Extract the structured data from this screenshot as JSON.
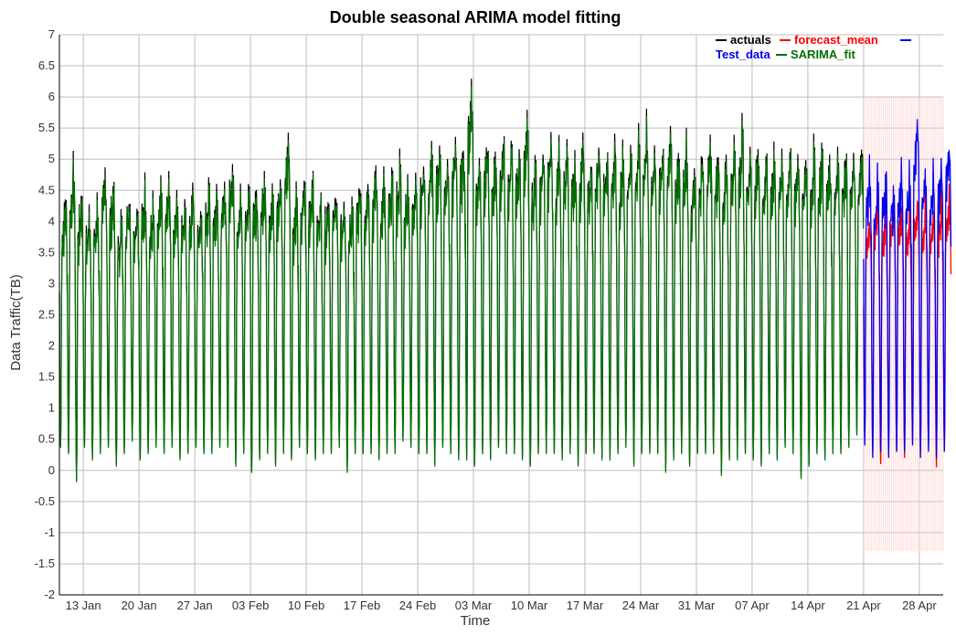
{
  "chart_data": {
    "type": "line",
    "title": "Double seasonal ARIMA model fitting",
    "xlabel": "Time",
    "ylabel": "Data Traffic(TB)",
    "ylim": [
      -2,
      7
    ],
    "xlim": [
      "2019-01-10",
      "2019-05-01"
    ],
    "grid": true,
    "legend_position": "top-right",
    "y_ticks": [
      -2,
      -1.5,
      -1,
      -0.5,
      0,
      0.5,
      1,
      1.5,
      2,
      2.5,
      3,
      3.5,
      4,
      4.5,
      5,
      5.5,
      6,
      6.5,
      7
    ],
    "x_ticks": [
      {
        "label": "13 Jan",
        "date": "2019-01-13"
      },
      {
        "label": "20 Jan",
        "date": "2019-01-20"
      },
      {
        "label": "27 Jan",
        "date": "2019-01-27"
      },
      {
        "label": "03 Feb",
        "date": "2019-02-03"
      },
      {
        "label": "10 Feb",
        "date": "2019-02-10"
      },
      {
        "label": "17 Feb",
        "date": "2019-02-17"
      },
      {
        "label": "24 Feb",
        "date": "2019-02-24"
      },
      {
        "label": "03 Mar",
        "date": "2019-03-03"
      },
      {
        "label": "10 Mar",
        "date": "2019-03-10"
      },
      {
        "label": "17 Mar",
        "date": "2019-03-17"
      },
      {
        "label": "24 Mar",
        "date": "2019-03-24"
      },
      {
        "label": "31 Mar",
        "date": "2019-03-31"
      },
      {
        "label": "07 Apr",
        "date": "2019-04-07"
      },
      {
        "label": "14 Apr",
        "date": "2019-04-14"
      },
      {
        "label": "21 Apr",
        "date": "2019-04-21"
      },
      {
        "label": "28 Apr",
        "date": "2019-04-28"
      }
    ],
    "series": [
      {
        "name": "actuals",
        "color": "#000000",
        "date_range": [
          "2019-01-10",
          "2019-04-20"
        ],
        "frequency": "daily cycle",
        "daily_peaks": [
          4.4,
          4.9,
          4.5,
          4.2,
          4.3,
          4.8,
          4.6,
          4.1,
          4.5,
          4.4,
          4.6,
          4.3,
          4.5,
          4.7,
          4.5,
          4.4,
          4.6,
          4.3,
          4.6,
          4.5,
          4.7,
          5.05,
          4.6,
          4.7,
          4.6,
          4.9,
          4.7,
          4.8,
          5.45,
          4.5,
          4.7,
          4.8,
          4.5,
          4.5,
          4.6,
          4.4,
          4.3,
          4.7,
          4.8,
          4.9,
          4.7,
          4.8,
          5.0,
          4.7,
          4.9,
          5.1,
          5.2,
          5.3,
          5.0,
          5.4,
          5.3,
          6.3,
          5.2,
          5.3,
          5.2,
          5.4,
          5.3,
          5.2,
          5.6,
          5.0,
          5.3,
          5.4,
          5.2,
          5.3,
          5.1,
          5.4,
          5.0,
          5.3,
          5.2,
          5.4,
          5.1,
          5.2,
          5.5,
          5.6,
          5.2,
          5.3,
          5.5,
          5.2,
          5.3,
          5.0,
          5.2,
          5.3,
          5.2,
          5.1,
          5.3,
          5.6,
          5.2,
          5.3,
          5.1,
          5.2,
          5.1,
          5.2,
          5.2,
          5.1,
          5.2,
          5.2,
          5.1,
          5.2,
          5.2,
          5.1,
          5.2
        ],
        "daily_troughs": [
          0.4,
          0.3,
          -0.15,
          0.4,
          0.2,
          0.3,
          0.4,
          0.1,
          0.3,
          0.5,
          0.2,
          0.3,
          0.4,
          0.3,
          0.4,
          0.2,
          0.3,
          0.4,
          0.3,
          0.3,
          0.4,
          0.4,
          0.1,
          0.3,
          0.0,
          0.2,
          0.3,
          0.1,
          0.3,
          0.2,
          0.4,
          0.3,
          0.2,
          0.3,
          0.3,
          0.4,
          0.0,
          0.3,
          0.3,
          0.3,
          0.2,
          0.3,
          0.3,
          0.5,
          0.4,
          0.3,
          0.3,
          0.1,
          0.4,
          0.3,
          0.2,
          0.2,
          0.1,
          0.3,
          0.2,
          0.4,
          0.3,
          0.3,
          0.2,
          0.1,
          0.3,
          0.3,
          0.3,
          0.2,
          0.3,
          0.1,
          0.3,
          0.3,
          0.2,
          0.2,
          0.3,
          0.4,
          0.1,
          0.3,
          0.3,
          0.3,
          0.0,
          0.2,
          0.3,
          0.1,
          0.3,
          0.3,
          0.3,
          -0.05,
          0.2,
          0.2,
          0.3,
          0.2,
          0.1,
          0.3,
          0.2,
          0.4,
          0.3,
          -0.1,
          0.1,
          0.3,
          0.2,
          0.3,
          0.3,
          0.4,
          0.6
        ]
      },
      {
        "name": "SARIMA_fit",
        "color": "#007000",
        "date_range": [
          "2019-01-10",
          "2019-04-20"
        ],
        "note_from_chart": "fitted values overlay actuals"
      },
      {
        "name": "Test_data",
        "color": "#0000ee",
        "date_range": [
          "2019-04-21",
          "2019-05-01"
        ],
        "daily_peaks": [
          4.9,
          4.7,
          4.8,
          4.6,
          4.9,
          4.7,
          5.8,
          4.9,
          4.8,
          5.05,
          5.25
        ],
        "daily_troughs": [
          0.4,
          0.2,
          0.3,
          0.2,
          0.3,
          0.3,
          0.4,
          0.2,
          0.3,
          0.2,
          0.3
        ]
      },
      {
        "name": "forecast_mean",
        "color": "#ff0000",
        "date_range": [
          "2019-04-21",
          "2019-05-01"
        ],
        "daily_peaks": [
          4.1,
          4.4,
          4.2,
          4.3,
          4.3,
          4.2,
          4.4,
          4.3,
          4.2,
          4.4,
          4.5
        ],
        "daily_troughs": [
          0.5,
          0.3,
          0.1,
          0.5,
          0.3,
          0.2,
          0.5,
          0.3,
          0.4,
          0.05,
          0.3
        ]
      },
      {
        "name": "",
        "color": "#0000ee",
        "legend_only": true
      }
    ],
    "forecast_interval": {
      "color": "#ffcccc",
      "date_range": [
        "2019-04-21",
        "2019-05-01"
      ],
      "upper": 6.0,
      "lower": -1.3
    }
  }
}
